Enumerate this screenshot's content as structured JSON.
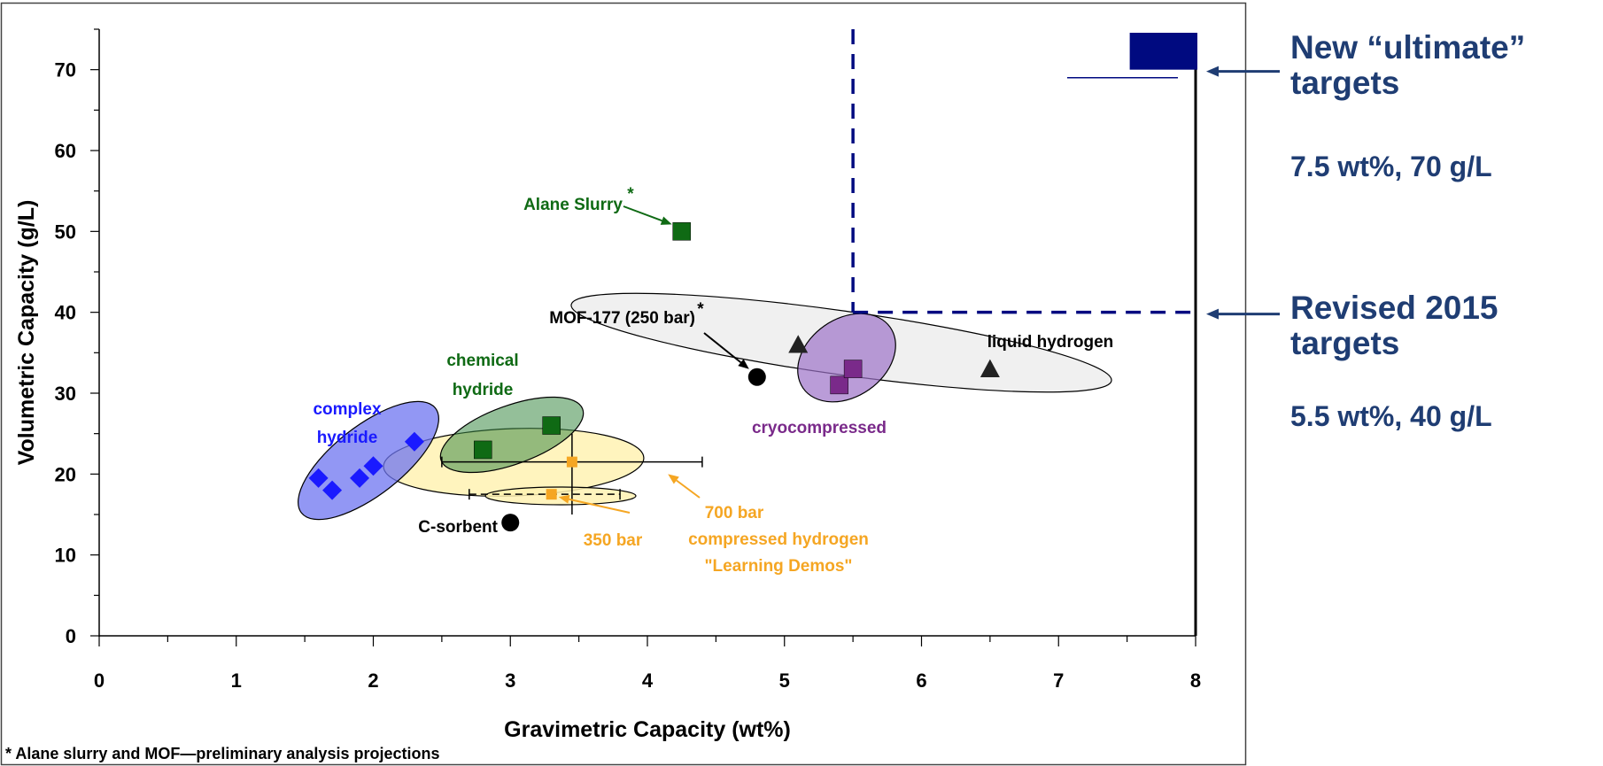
{
  "chart_data": {
    "type": "scatter",
    "xlabel": "Gravimetric Capacity (wt%)",
    "ylabel": "Volumetric Capacity (g/L)",
    "xlim": [
      0,
      8
    ],
    "ylim": [
      0,
      75
    ],
    "x_ticks": [
      "0",
      "1",
      "2",
      "3",
      "4",
      "5",
      "6",
      "7",
      "8"
    ],
    "y_ticks": [
      "0",
      "10",
      "20",
      "30",
      "40",
      "50",
      "60",
      "70"
    ],
    "grid": false,
    "series": [
      {
        "name": "complex hydride",
        "marker": "diamond",
        "color": "#1a1aff",
        "points": [
          [
            1.6,
            19.5
          ],
          [
            1.7,
            18
          ],
          [
            1.9,
            19.5
          ],
          [
            2.0,
            21
          ],
          [
            2.3,
            24
          ]
        ]
      },
      {
        "name": "chemical hydride",
        "marker": "square",
        "color": "#0f6a14",
        "points": [
          [
            2.8,
            23
          ],
          [
            3.3,
            26
          ]
        ]
      },
      {
        "name": "Alane Slurry",
        "marker": "square",
        "color": "#0f6a14",
        "points": [
          [
            4.25,
            50
          ]
        ]
      },
      {
        "name": "700 bar",
        "marker": "square-small",
        "color": "#f5a623",
        "points": [
          [
            3.45,
            21.5
          ]
        ]
      },
      {
        "name": "350 bar",
        "marker": "square-small",
        "color": "#f5a623",
        "points": [
          [
            3.3,
            17.5
          ]
        ]
      },
      {
        "name": "C-sorbent",
        "marker": "circle",
        "color": "#000000",
        "points": [
          [
            3.0,
            14
          ]
        ]
      },
      {
        "name": "MOF-177 (250 bar)",
        "marker": "circle",
        "color": "#000000",
        "points": [
          [
            4.8,
            32
          ]
        ]
      },
      {
        "name": "cryocompressed",
        "marker": "square",
        "color": "#7a2a8a",
        "points": [
          [
            5.4,
            31
          ],
          [
            5.5,
            33
          ]
        ]
      },
      {
        "name": "liquid hydrogen",
        "marker": "triangle",
        "color": "#222222",
        "points": [
          [
            5.1,
            36
          ],
          [
            6.5,
            33
          ]
        ]
      }
    ],
    "annotations": {
      "complex_hydride": [
        "complex",
        "hydride"
      ],
      "chemical_hydride": [
        "chemical",
        "hydride"
      ],
      "alane": "Alane Slurry",
      "mof": "MOF-177 (250 bar)",
      "c_sorbent": "C-sorbent",
      "bar350": "350 bar",
      "bar700": [
        "700 bar",
        "compressed hydrogen",
        "\"Learning Demos\""
      ],
      "cryo": "cryocompressed",
      "liquid": "liquid hydrogen",
      "asterisk": "*"
    },
    "targets": [
      {
        "name": "Revised 2015 targets",
        "x": 5.5,
        "y": 40
      },
      {
        "name": "New “ultimate” targets",
        "x": 7.5,
        "y": 70
      }
    ],
    "colors": {
      "complex": "#1a1aff",
      "chemical": "#0f6a14",
      "compressed": "#f5a623",
      "cryo": "#7a2a8a",
      "black": "#000000",
      "navy": "#000a80",
      "side_text": "#1f3d73"
    }
  },
  "side": {
    "ultimate_title": [
      "New “ultimate”",
      "targets"
    ],
    "ultimate_value": "7.5 wt%, 70 g/L",
    "revised_title": [
      "Revised 2015",
      "targets"
    ],
    "revised_value": "5.5 wt%, 40 g/L"
  },
  "footnote": "* Alane slurry and MOF—preliminary analysis projections"
}
